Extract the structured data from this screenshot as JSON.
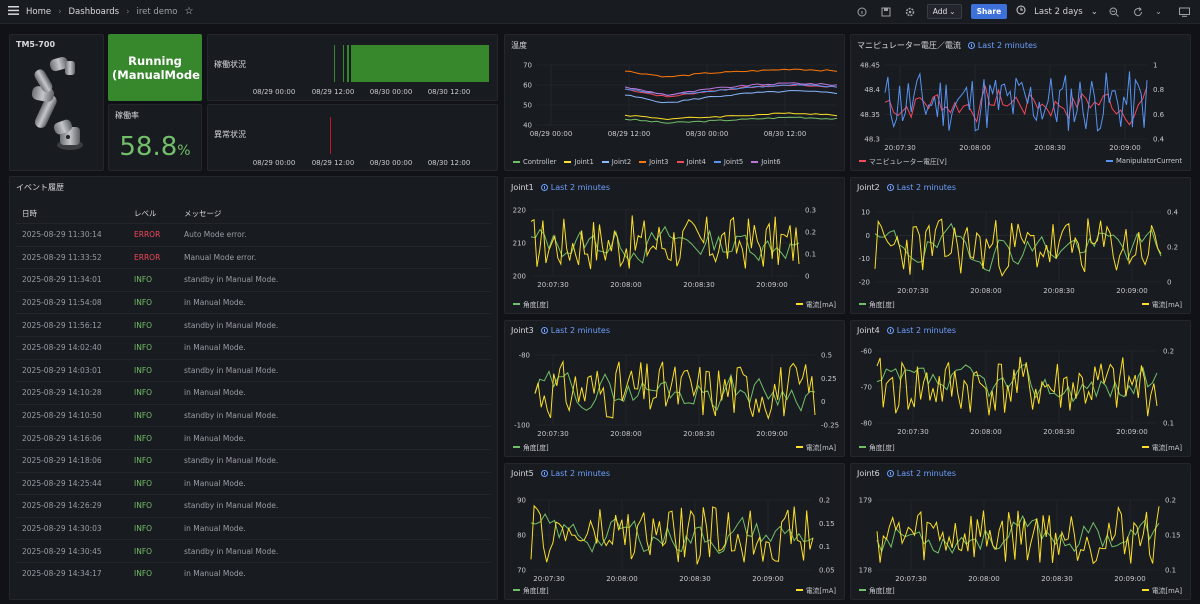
{
  "topbar": {
    "home": "Home",
    "dashboards": "Dashboards",
    "dashboard_name": "iret demo",
    "add_label": "Add",
    "share_label": "Share",
    "time_range": "Last 2 days"
  },
  "robot": {
    "title": "TM5-700"
  },
  "status": {
    "label": "Running (ManualMode)",
    "color": "#37872d"
  },
  "rate": {
    "title": "稼働率",
    "value": "58.8",
    "unit": "%"
  },
  "operation": {
    "title": "稼働状況",
    "ticks": [
      "08/29 00:00",
      "08/29 12:00",
      "08/30 00:00",
      "08/30 12:00"
    ]
  },
  "anomaly": {
    "title": "異常状況",
    "ticks": [
      "08/29 00:00",
      "08/29 12:00",
      "08/30 00:00",
      "08/30 12:00"
    ]
  },
  "events": {
    "title": "イベント履歴",
    "columns": [
      "日時",
      "レベル",
      "メッセージ"
    ],
    "rows": [
      [
        "2025-08-29 11:30:14",
        "ERROR",
        "Auto Mode error."
      ],
      [
        "2025-08-29 11:33:52",
        "ERROR",
        "Manual Mode error."
      ],
      [
        "2025-08-29 11:34:01",
        "INFO",
        "standby in Manual Mode."
      ],
      [
        "2025-08-29 11:54:08",
        "INFO",
        "in Manual Mode."
      ],
      [
        "2025-08-29 11:56:12",
        "INFO",
        "standby in Manual Mode."
      ],
      [
        "2025-08-29 14:02:40",
        "INFO",
        "in Manual Mode."
      ],
      [
        "2025-08-29 14:03:01",
        "INFO",
        "standby in Manual Mode."
      ],
      [
        "2025-08-29 14:10:28",
        "INFO",
        "in Manual Mode."
      ],
      [
        "2025-08-29 14:10:50",
        "INFO",
        "standby in Manual Mode."
      ],
      [
        "2025-08-29 14:16:06",
        "INFO",
        "in Manual Mode."
      ],
      [
        "2025-08-29 14:18:06",
        "INFO",
        "standby in Manual Mode."
      ],
      [
        "2025-08-29 14:25:44",
        "INFO",
        "in Manual Mode."
      ],
      [
        "2025-08-29 14:26:29",
        "INFO",
        "standby in Manual Mode."
      ],
      [
        "2025-08-29 14:30:03",
        "INFO",
        "in Manual Mode."
      ],
      [
        "2025-08-29 14:30:45",
        "INFO",
        "standby in Manual Mode."
      ],
      [
        "2025-08-29 14:34:17",
        "INFO",
        "in Manual Mode."
      ]
    ]
  },
  "chart_data": [
    {
      "id": "temp",
      "type": "line",
      "title": "温度",
      "time_label": "",
      "ylim": [
        35,
        75
      ],
      "yticks": [
        "70",
        "60",
        "50",
        "40"
      ],
      "xticks": [
        "08/29 00:00",
        "08/29 12:00",
        "08/30 00:00",
        "08/30 12:00"
      ],
      "series": [
        {
          "name": "Controller",
          "color": "#73bf69",
          "values": [
            43,
            41,
            42,
            43,
            44,
            43
          ]
        },
        {
          "name": "Joint1",
          "color": "#fade2a",
          "values": [
            45,
            43,
            44,
            45,
            46,
            45
          ]
        },
        {
          "name": "Joint2",
          "color": "#8ab8ff",
          "values": [
            55,
            51,
            54,
            56,
            57,
            56
          ]
        },
        {
          "name": "Joint3",
          "color": "#ff780a",
          "values": [
            67,
            64,
            66,
            67,
            68,
            67
          ]
        },
        {
          "name": "Joint4",
          "color": "#f2495c",
          "values": [
            58,
            54,
            57,
            59,
            60,
            59
          ]
        },
        {
          "name": "Joint5",
          "color": "#5794f2",
          "values": [
            58,
            55,
            57,
            59,
            60,
            59
          ]
        },
        {
          "name": "Joint6",
          "color": "#b877d9",
          "values": [
            59,
            55,
            58,
            60,
            61,
            60
          ]
        }
      ]
    },
    {
      "id": "volt",
      "type": "line",
      "title": "マニピュレーター電圧／電流",
      "time_label": "Last 2 minutes",
      "yticks": [
        "48.45",
        "48.4",
        "48.35",
        "48.3"
      ],
      "y2ticks": [
        "1",
        "0.8",
        "0.6",
        "0.4"
      ],
      "xticks": [
        "20:07:30",
        "20:08:00",
        "20:08:30",
        "20:09:00"
      ],
      "series": [
        {
          "name": "マニピュレーター電圧[V]",
          "color": "#f2495c"
        },
        {
          "name": "ManipulatorCurrent",
          "color": "#5794f2"
        }
      ]
    },
    {
      "id": "j1",
      "type": "line",
      "title": "Joint1",
      "time_label": "Last 2 minutes",
      "yticks": [
        "220",
        "210",
        "200"
      ],
      "y2ticks": [
        "0.3",
        "0.2",
        "0.1",
        "0"
      ],
      "xticks": [
        "20:07:30",
        "20:08:00",
        "20:08:30",
        "20:09:00"
      ],
      "series": [
        {
          "name": "角度[度]",
          "color": "#73bf69"
        },
        {
          "name": "電流[mA]",
          "color": "#fade2a"
        }
      ]
    },
    {
      "id": "j2",
      "type": "line",
      "title": "Joint2",
      "time_label": "Last 2 minutes",
      "yticks": [
        "10",
        "0",
        "-10",
        "-20"
      ],
      "y2ticks": [
        "0.4",
        "0.2",
        "0"
      ],
      "xticks": [
        "20:07:30",
        "20:08:00",
        "20:08:30",
        "20:09:00"
      ],
      "series": [
        {
          "name": "角度[度]",
          "color": "#73bf69"
        },
        {
          "name": "電流[mA]",
          "color": "#fade2a"
        }
      ]
    },
    {
      "id": "j3",
      "type": "line",
      "title": "Joint3",
      "time_label": "Last 2 minutes",
      "yticks": [
        "-80",
        "-100"
      ],
      "y2ticks": [
        "0.5",
        "0.25",
        "0",
        "-0.25"
      ],
      "xticks": [
        "20:07:30",
        "20:08:00",
        "20:08:30",
        "20:09:00"
      ],
      "series": [
        {
          "name": "角度[度]",
          "color": "#73bf69"
        },
        {
          "name": "電流[mA]",
          "color": "#fade2a"
        }
      ]
    },
    {
      "id": "j4",
      "type": "line",
      "title": "Joint4",
      "time_label": "Last 2 minutes",
      "yticks": [
        "-60",
        "-70",
        "-80"
      ],
      "y2ticks": [
        "0.2",
        "0.1"
      ],
      "xticks": [
        "20:07:30",
        "20:08:00",
        "20:08:30",
        "20:09:00"
      ],
      "series": [
        {
          "name": "角度[度]",
          "color": "#73bf69"
        },
        {
          "name": "電流[mA]",
          "color": "#fade2a"
        }
      ]
    },
    {
      "id": "j5",
      "type": "line",
      "title": "Joint5",
      "time_label": "Last 2 minutes",
      "yticks": [
        "90",
        "80",
        "70"
      ],
      "y2ticks": [
        "0.2",
        "0.15",
        "0.1",
        "0.05"
      ],
      "xticks": [
        "20:07:30",
        "20:08:00",
        "20:08:30",
        "20:09:00"
      ],
      "series": [
        {
          "name": "角度[度]",
          "color": "#73bf69"
        },
        {
          "name": "電流[mA]",
          "color": "#fade2a"
        }
      ]
    },
    {
      "id": "j6",
      "type": "line",
      "title": "Joint6",
      "time_label": "Last 2 minutes",
      "yticks": [
        "179",
        "178"
      ],
      "y2ticks": [
        "0.2",
        "0.15",
        "0.1"
      ],
      "xticks": [
        "20:07:30",
        "20:08:00",
        "20:08:30",
        "20:09:00"
      ],
      "series": [
        {
          "name": "角度[度]",
          "color": "#73bf69"
        },
        {
          "name": "電流[mA]",
          "color": "#fade2a"
        }
      ]
    }
  ]
}
